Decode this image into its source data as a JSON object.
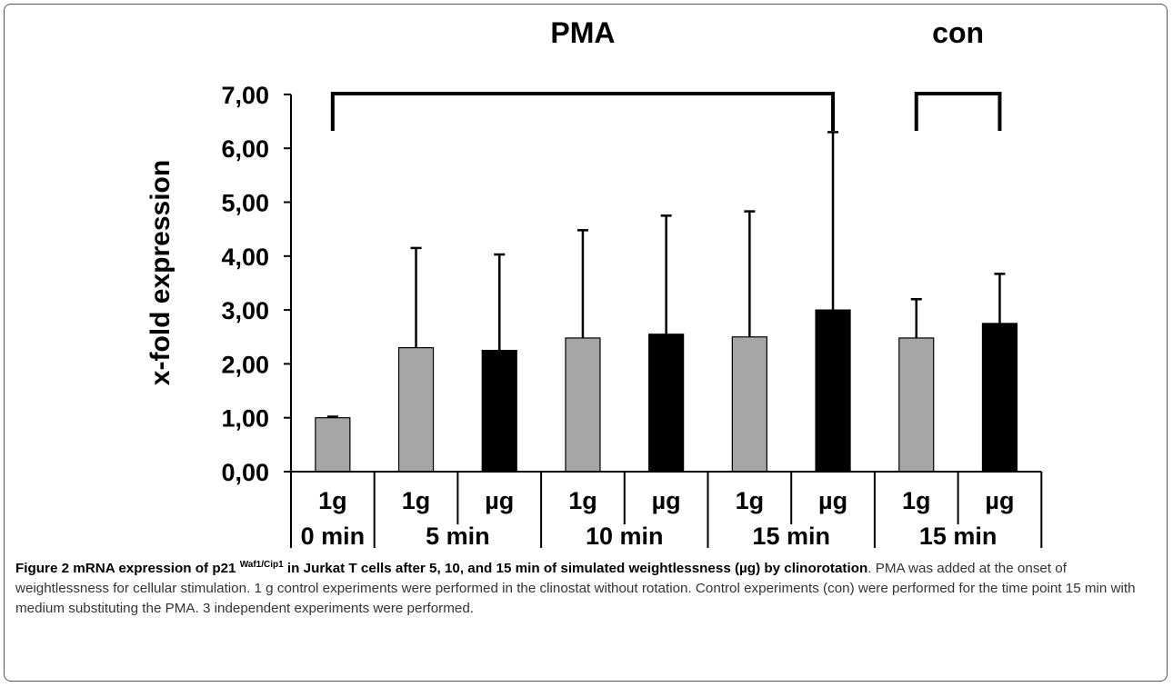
{
  "chart_data": {
    "type": "bar",
    "ylabel": "x-fold expression",
    "ylim": [
      0,
      7
    ],
    "yticks": [
      "0,00",
      "1,00",
      "2,00",
      "3,00",
      "4,00",
      "5,00",
      "6,00",
      "7,00"
    ],
    "categories": [
      "1g",
      "1g",
      "µg",
      "1g",
      "µg",
      "1g",
      "µg",
      "1g",
      "µg"
    ],
    "time_groups": [
      {
        "label": "0 min",
        "count": 1
      },
      {
        "label": "5 min",
        "count": 2
      },
      {
        "label": "10 min",
        "count": 2
      },
      {
        "label": "15 min",
        "count": 2
      },
      {
        "label": "15 min",
        "count": 2
      }
    ],
    "brackets": [
      {
        "label": "PMA",
        "from": 0,
        "to": 6
      },
      {
        "label": "con",
        "from": 7,
        "to": 8
      }
    ],
    "values": [
      1.0,
      2.3,
      2.25,
      2.48,
      2.55,
      2.5,
      3.0,
      2.48,
      2.75
    ],
    "errors": [
      0.02,
      1.85,
      1.78,
      2.0,
      2.2,
      2.33,
      3.3,
      0.72,
      0.92
    ],
    "bar_colors": [
      "#a6a6a6",
      "#a6a6a6",
      "#000000",
      "#a6a6a6",
      "#000000",
      "#a6a6a6",
      "#000000",
      "#a6a6a6",
      "#000000"
    ],
    "grid": false
  },
  "caption": {
    "title_a": "Figure 2 mRNA expression of p21 ",
    "title_sup": "Waf1/Cip1",
    "title_b": " in Jurkat T cells after 5, 10, and 15 min of simulated weightlessness (µg) by clinorotation",
    "title_end": ".",
    "body": "PMA was added at the onset of weightlessness for cellular stimulation. 1 g control experiments were performed in the clinostat without rotation. Control experiments (con) were performed for the time point 15 min with medium substituting the PMA. 3 independent experiments were performed."
  }
}
